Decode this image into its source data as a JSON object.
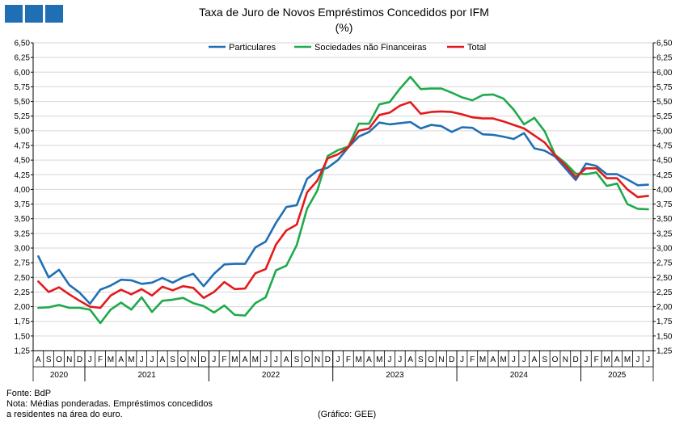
{
  "header": {
    "logo_name": "institution-logo",
    "logo_color": "#1f6fb5"
  },
  "footer": {
    "source": "Fonte: BdP",
    "note_line1": "Nota: Médias ponderadas. Empréstimos concedidos",
    "note_line2": "a residentes na área do euro.",
    "credit": "(Gráfico: GEE)"
  },
  "chart_data": {
    "type": "line",
    "title": "Taxa de Juro de Novos Empréstimos  Concedidos por IFM",
    "subtitle": "(%)",
    "xlabel": "",
    "ylabel": "",
    "ylim": [
      1.25,
      6.5
    ],
    "yticks": [
      "1,25",
      "1,50",
      "1,75",
      "2,00",
      "2,25",
      "2,50",
      "2,75",
      "3,00",
      "3,25",
      "3,50",
      "3,75",
      "4,00",
      "4,25",
      "4,50",
      "4,75",
      "5,00",
      "5,25",
      "5,50",
      "5,75",
      "6,00",
      "6,25",
      "6,50"
    ],
    "grid": true,
    "legend_position": "top",
    "categories": [
      "A",
      "S",
      "O",
      "N",
      "D",
      "J",
      "F",
      "M",
      "A",
      "M",
      "J",
      "J",
      "A",
      "S",
      "O",
      "N",
      "D",
      "J",
      "F",
      "M",
      "A",
      "M",
      "J",
      "J",
      "A",
      "S",
      "O",
      "N",
      "D",
      "J",
      "F",
      "M",
      "A",
      "M",
      "J",
      "J",
      "A",
      "S",
      "O",
      "N",
      "D",
      "J",
      "F",
      "M",
      "A",
      "M",
      "J",
      "J",
      "A",
      "S",
      "O",
      "N",
      "D",
      "J",
      "F",
      "M",
      "A",
      "M",
      "J",
      "J"
    ],
    "years": [
      {
        "label": "2020",
        "start": 0,
        "end": 4
      },
      {
        "label": "2021",
        "start": 5,
        "end": 16
      },
      {
        "label": "2022",
        "start": 17,
        "end": 28
      },
      {
        "label": "2023",
        "start": 29,
        "end": 40
      },
      {
        "label": "2024",
        "start": 41,
        "end": 52
      },
      {
        "label": "2025",
        "start": 53,
        "end": 59
      }
    ],
    "series": [
      {
        "name": "Particulares",
        "color": "#1f6fb5",
        "values": [
          2.86,
          2.5,
          2.63,
          2.37,
          2.24,
          2.05,
          2.29,
          2.36,
          2.46,
          2.45,
          2.39,
          2.41,
          2.49,
          2.41,
          2.5,
          2.56,
          2.35,
          2.56,
          2.72,
          2.73,
          2.73,
          3.01,
          3.11,
          3.43,
          3.7,
          3.73,
          4.18,
          4.32,
          4.37,
          4.5,
          4.72,
          4.9,
          4.98,
          5.14,
          5.11,
          5.13,
          5.15,
          5.04,
          5.1,
          5.08,
          4.98,
          5.06,
          5.05,
          4.94,
          4.93,
          4.9,
          4.86,
          4.96,
          4.7,
          4.66,
          4.56,
          4.36,
          4.16,
          4.44,
          4.4,
          4.26,
          4.26,
          4.17,
          4.07,
          4.08
        ]
      },
      {
        "name": "Sociedades não Financeiras",
        "color": "#1faa4b",
        "values": [
          1.98,
          1.99,
          2.03,
          1.98,
          1.98,
          1.95,
          1.72,
          1.95,
          2.07,
          1.95,
          2.16,
          1.91,
          2.1,
          2.12,
          2.15,
          2.06,
          2.01,
          1.9,
          2.02,
          1.86,
          1.85,
          2.06,
          2.16,
          2.62,
          2.7,
          3.05,
          3.67,
          3.98,
          4.57,
          4.67,
          4.73,
          5.12,
          5.12,
          5.45,
          5.49,
          5.72,
          5.92,
          5.71,
          5.72,
          5.72,
          5.65,
          5.57,
          5.52,
          5.61,
          5.62,
          5.55,
          5.36,
          5.11,
          5.22,
          4.99,
          4.59,
          4.45,
          4.27,
          4.26,
          4.29,
          4.06,
          4.1,
          3.75,
          3.67,
          3.66
        ]
      },
      {
        "name": "Total",
        "color": "#e31a1c",
        "values": [
          2.43,
          2.25,
          2.33,
          2.21,
          2.1,
          2.0,
          1.98,
          2.19,
          2.29,
          2.21,
          2.3,
          2.19,
          2.34,
          2.28,
          2.35,
          2.32,
          2.15,
          2.25,
          2.42,
          2.3,
          2.31,
          2.57,
          2.64,
          3.06,
          3.3,
          3.4,
          3.95,
          4.15,
          4.53,
          4.6,
          4.72,
          5.0,
          5.04,
          5.27,
          5.31,
          5.43,
          5.49,
          5.29,
          5.32,
          5.33,
          5.32,
          5.28,
          5.23,
          5.21,
          5.21,
          5.16,
          5.1,
          5.04,
          4.92,
          4.8,
          4.58,
          4.41,
          4.21,
          4.36,
          4.36,
          4.19,
          4.19,
          4.0,
          3.87,
          3.89
        ]
      }
    ]
  }
}
